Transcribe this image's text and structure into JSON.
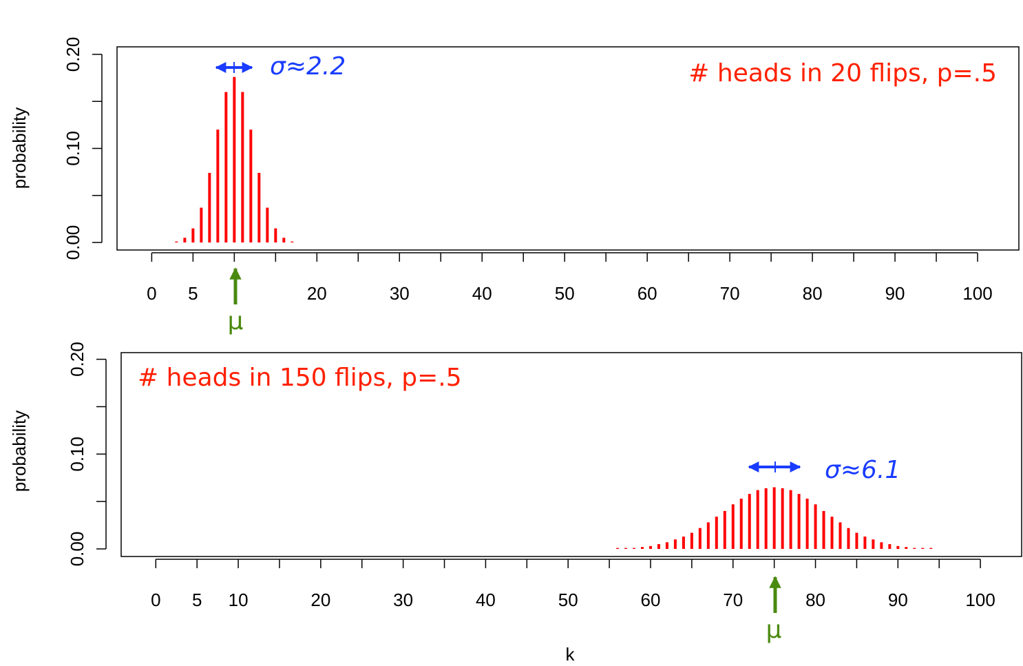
{
  "chart_data": [
    {
      "type": "bar",
      "title": "# heads in 20 flips, p=.5",
      "ylabel": "probability",
      "color": "#ff0000",
      "annotations": [
        "σ≈2.2",
        "μ"
      ],
      "x": [
        0,
        1,
        2,
        3,
        4,
        5,
        6,
        7,
        8,
        9,
        10,
        11,
        12,
        13,
        14,
        15,
        16,
        17,
        18,
        19,
        20
      ],
      "values": [
        0.0,
        0.0,
        0.0,
        0.001,
        0.005,
        0.015,
        0.037,
        0.074,
        0.12,
        0.16,
        0.176,
        0.16,
        0.12,
        0.074,
        0.037,
        0.015,
        0.005,
        0.001,
        0.0,
        0.0,
        0.0
      ],
      "xlim": [
        -4.2,
        105
      ],
      "ylim": [
        -0.008,
        0.208
      ],
      "xticks": [
        0,
        5,
        20,
        30,
        40,
        50,
        60,
        70,
        80,
        90,
        100
      ],
      "xminor_ticks": [
        10,
        15,
        25,
        35,
        45,
        55,
        65,
        75,
        85,
        95
      ],
      "yticks": [
        {
          "value": 0,
          "label": "0.00"
        },
        {
          "value": 0.1,
          "label": "0.10"
        },
        {
          "value": 0.2,
          "label": "0.20"
        }
      ],
      "yminor_ticks": [
        0.05,
        0.15
      ]
    },
    {
      "type": "bar",
      "title": "# heads in 150 flips, p=.5",
      "ylabel": "probability",
      "xlabel": "k",
      "color": "#ff0000",
      "annotations": [
        "σ≈6.1",
        "μ"
      ],
      "x": [
        50,
        51,
        52,
        53,
        54,
        55,
        56,
        57,
        58,
        59,
        60,
        61,
        62,
        63,
        64,
        65,
        66,
        67,
        68,
        69,
        70,
        71,
        72,
        73,
        74,
        75,
        76,
        77,
        78,
        79,
        80,
        81,
        82,
        83,
        84,
        85,
        86,
        87,
        88,
        89,
        90,
        91,
        92,
        93,
        94,
        95,
        96,
        97,
        98,
        99,
        100
      ],
      "values": [
        0.0,
        0.0,
        0.0,
        0.0,
        0.0,
        0.0,
        0.001,
        0.001,
        0.001,
        0.002,
        0.003,
        0.005,
        0.007,
        0.01,
        0.013,
        0.017,
        0.022,
        0.028,
        0.034,
        0.04,
        0.047,
        0.053,
        0.058,
        0.062,
        0.064,
        0.065,
        0.064,
        0.062,
        0.058,
        0.053,
        0.047,
        0.04,
        0.034,
        0.028,
        0.022,
        0.017,
        0.013,
        0.01,
        0.007,
        0.005,
        0.003,
        0.002,
        0.001,
        0.001,
        0.001,
        0.0,
        0.0,
        0.0,
        0.0,
        0.0,
        0.0
      ],
      "xlim": [
        -4.2,
        105
      ],
      "ylim": [
        -0.008,
        0.207
      ],
      "xticks": [
        0,
        5,
        10,
        20,
        30,
        40,
        50,
        60,
        70,
        80,
        90,
        100
      ],
      "xminor_ticks": [
        15,
        25,
        35,
        45,
        55,
        65,
        75,
        85,
        95
      ],
      "yticks": [
        {
          "value": 0,
          "label": "0.00"
        },
        {
          "value": 0.1,
          "label": "0.10"
        },
        {
          "value": 0.2,
          "label": "0.20"
        }
      ],
      "yminor_ticks": [
        0.05,
        0.15
      ]
    }
  ]
}
